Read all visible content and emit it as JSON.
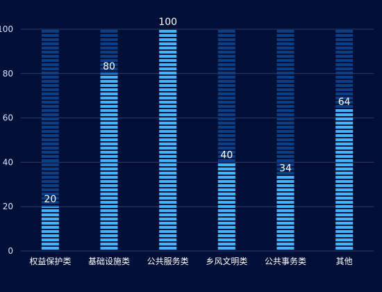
{
  "chart_data": {
    "type": "bar",
    "categories": [
      "权益保护类",
      "基础设施类",
      "公共服务类",
      "乡风文明类",
      "公共事务类",
      "其他"
    ],
    "values": [
      20,
      80,
      100,
      40,
      34,
      64
    ],
    "ylim": [
      0,
      100
    ],
    "yticks": [
      0,
      20,
      40,
      60,
      80,
      100
    ],
    "grid": true,
    "colors": {
      "bar": "#3fb4ff",
      "bar_background": "#0a3f86",
      "background": "#010f36",
      "grid": "#2a3f6e"
    }
  }
}
